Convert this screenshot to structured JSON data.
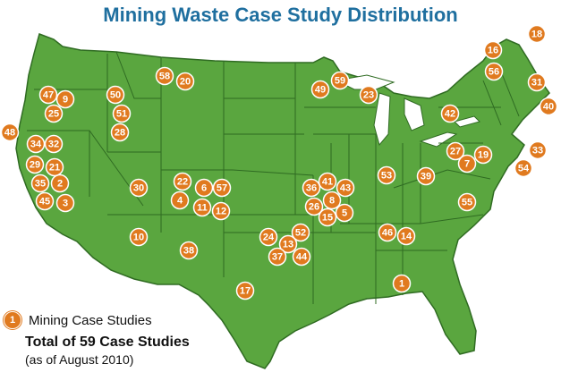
{
  "title": "Mining Waste Case Study Distribution",
  "colors": {
    "land": "#5aa63f",
    "border": "#2f6b22",
    "marker": "#e07a1f",
    "title": "#1f6f9f"
  },
  "legend": {
    "marker_number": "1",
    "marker_label": "Mining Case Studies",
    "total": "Total of 59 Case Studies",
    "as_of": "(as of August 2010)"
  },
  "markers": [
    "1",
    "2",
    "3",
    "4",
    "5",
    "6",
    "7",
    "8",
    "9",
    "10",
    "11",
    "12",
    "13",
    "14",
    "15",
    "16",
    "17",
    "18",
    "19",
    "20",
    "21",
    "22",
    "23",
    "24",
    "25",
    "26",
    "27",
    "28",
    "29",
    "30",
    "31",
    "32",
    "33",
    "34",
    "35",
    "36",
    "37",
    "38",
    "39",
    "40",
    "41",
    "42",
    "43",
    "44",
    "45",
    "46",
    "47",
    "48",
    "49",
    "50",
    "51",
    "52",
    "53",
    "54",
    "55",
    "56",
    "57",
    "58",
    "59"
  ]
}
